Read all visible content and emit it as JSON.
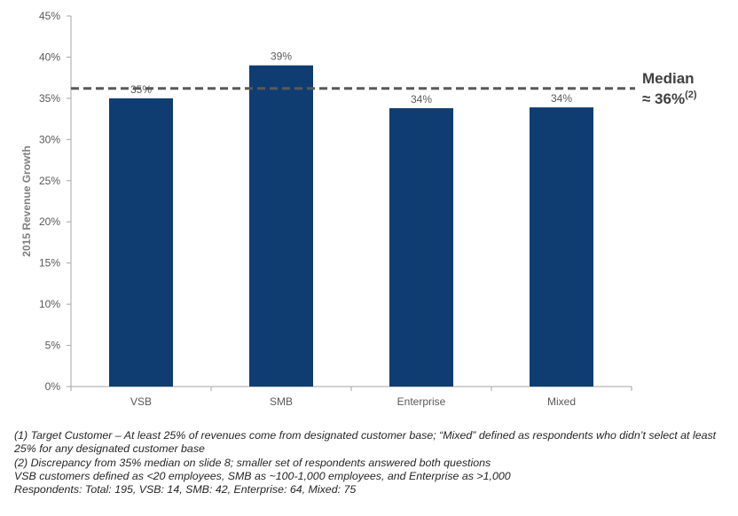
{
  "colors": {
    "bar": "#0f3d72",
    "median_line": "#595959",
    "axis": "#a6a6a6"
  },
  "chart_data": {
    "type": "bar",
    "ylabel": "2015 Revenue Growth",
    "xlabel": "",
    "ylim": [
      0,
      45
    ],
    "y_ticks": [
      "0%",
      "5%",
      "10%",
      "15%",
      "20%",
      "25%",
      "30%",
      "35%",
      "40%",
      "45%"
    ],
    "categories": [
      "VSB",
      "SMB",
      "Enterprise",
      "Mixed"
    ],
    "values": [
      35,
      39,
      33.8,
      33.9
    ],
    "data_labels": [
      "35%",
      "39%",
      "34%",
      "34%"
    ],
    "median_line": 36.2,
    "grid": false
  },
  "median_annotation": {
    "title": "Median",
    "value": "≈ 36%",
    "superscript": "(2)"
  },
  "footnotes": [
    "(1) Target Customer – At least 25% of revenues come from designated customer base; “Mixed” defined as respondents who didn’t select at least 25% for any designated customer base",
    "(2) Discrepancy from 35% median on slide 8; smaller set of respondents answered both questions",
    "VSB customers defined as <20 employees, SMB as ~100-1,000 employees, and Enterprise as >1,000",
    "Respondents: Total: 195, VSB: 14, SMB: 42, Enterprise: 64, Mixed: 75"
  ]
}
